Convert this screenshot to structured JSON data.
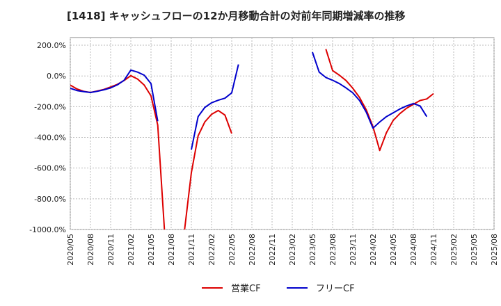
{
  "chart_data": {
    "type": "line",
    "title": "[1418]  キャッシュフローの12か月移動合計の対前年同期増減率の推移",
    "xlabel": "",
    "ylabel": "",
    "ylim": [
      -1000,
      250
    ],
    "y_ticks": [
      "200.0%",
      "0.0%",
      "-200.0%",
      "-400.0%",
      "-600.0%",
      "-800.0%",
      "-1000.0%"
    ],
    "y_tick_values": [
      200,
      0,
      -200,
      -400,
      -600,
      -800,
      -1000
    ],
    "x_ticks": [
      "2020/05",
      "2020/08",
      "2020/11",
      "2021/02",
      "2021/05",
      "2021/08",
      "2021/11",
      "2022/02",
      "2022/05",
      "2022/08",
      "2022/11",
      "2023/02",
      "2023/05",
      "2023/08",
      "2023/11",
      "2024/02",
      "2024/05",
      "2024/08",
      "2024/11",
      "2025/02",
      "2025/05",
      "2025/08"
    ],
    "grid": true,
    "legend_position": "bottom",
    "series": [
      {
        "name": "営業CF",
        "color": "#dd0000",
        "points": [
          [
            "2020/05",
            -60
          ],
          [
            "2020/06",
            -85
          ],
          [
            "2020/07",
            -100
          ],
          [
            "2020/08",
            -108
          ],
          [
            "2020/09",
            -98
          ],
          [
            "2020/10",
            -88
          ],
          [
            "2020/11",
            -72
          ],
          [
            "2020/12",
            -55
          ],
          [
            "2021/01",
            -30
          ],
          [
            "2021/02",
            2
          ],
          [
            "2021/03",
            -20
          ],
          [
            "2021/04",
            -60
          ],
          [
            "2021/05",
            -130
          ],
          [
            "2021/06",
            -320
          ],
          [
            "2021/07",
            -1000
          ],
          [
            null,
            null
          ],
          [
            "2021/10",
            -1000
          ],
          [
            "2021/11",
            -630
          ],
          [
            "2021/12",
            -390
          ],
          [
            "2022/01",
            -300
          ],
          [
            "2022/02",
            -250
          ],
          [
            "2022/03",
            -225
          ],
          [
            "2022/04",
            -255
          ],
          [
            "2022/05",
            -375
          ],
          [
            null,
            null
          ],
          [
            "2023/07",
            175
          ],
          [
            "2023/08",
            35
          ],
          [
            "2023/09",
            5
          ],
          [
            "2023/10",
            -30
          ],
          [
            "2023/11",
            -80
          ],
          [
            "2023/12",
            -140
          ],
          [
            "2024/01",
            -220
          ],
          [
            "2024/02",
            -330
          ],
          [
            "2024/03",
            -485
          ],
          [
            "2024/04",
            -370
          ],
          [
            "2024/05",
            -290
          ],
          [
            "2024/06",
            -245
          ],
          [
            "2024/07",
            -210
          ],
          [
            "2024/08",
            -185
          ],
          [
            "2024/09",
            -160
          ],
          [
            "2024/10",
            -150
          ],
          [
            "2024/11",
            -115
          ]
        ]
      },
      {
        "name": "フリーCF",
        "color": "#0000cc",
        "points": [
          [
            "2020/05",
            -80
          ],
          [
            "2020/06",
            -95
          ],
          [
            "2020/07",
            -102
          ],
          [
            "2020/08",
            -108
          ],
          [
            "2020/09",
            -100
          ],
          [
            "2020/10",
            -90
          ],
          [
            "2020/11",
            -78
          ],
          [
            "2020/12",
            -58
          ],
          [
            "2021/01",
            -28
          ],
          [
            "2021/02",
            38
          ],
          [
            "2021/03",
            25
          ],
          [
            "2021/04",
            5
          ],
          [
            "2021/05",
            -50
          ],
          [
            "2021/06",
            -295
          ],
          [
            null,
            null
          ],
          [
            "2021/11",
            -480
          ],
          [
            "2021/12",
            -265
          ],
          [
            "2022/01",
            -205
          ],
          [
            "2022/02",
            -175
          ],
          [
            "2022/03",
            -158
          ],
          [
            "2022/04",
            -145
          ],
          [
            "2022/05",
            -110
          ],
          [
            "2022/06",
            75
          ],
          [
            null,
            null
          ],
          [
            "2023/05",
            155
          ],
          [
            "2023/06",
            25
          ],
          [
            "2023/07",
            -10
          ],
          [
            "2023/08",
            -28
          ],
          [
            "2023/09",
            -50
          ],
          [
            "2023/10",
            -78
          ],
          [
            "2023/11",
            -110
          ],
          [
            "2023/12",
            -160
          ],
          [
            "2024/01",
            -235
          ],
          [
            "2024/02",
            -340
          ],
          [
            "2024/03",
            -300
          ],
          [
            "2024/04",
            -265
          ],
          [
            "2024/05",
            -240
          ],
          [
            "2024/06",
            -215
          ],
          [
            "2024/07",
            -195
          ],
          [
            "2024/08",
            -180
          ],
          [
            "2024/09",
            -195
          ],
          [
            "2024/10",
            -265
          ]
        ]
      }
    ]
  }
}
